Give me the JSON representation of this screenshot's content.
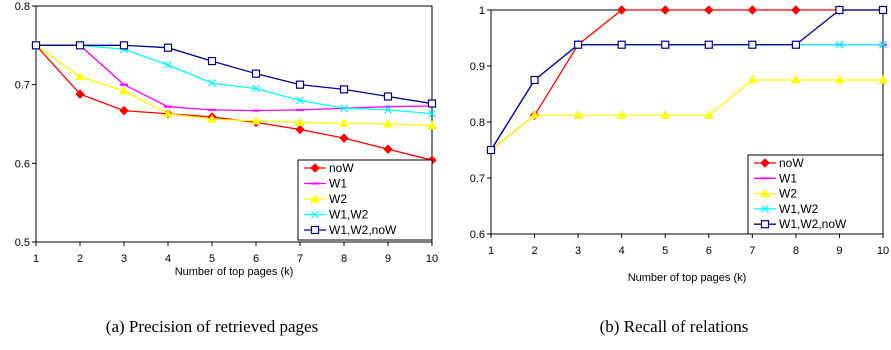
{
  "chart_data": [
    {
      "type": "line",
      "xlabel": "Number of top pages (k)",
      "ylabel": "",
      "caption": "(a) Precision of retrieved pages",
      "x": [
        1,
        2,
        3,
        4,
        5,
        6,
        7,
        8,
        9,
        10
      ],
      "xlim": [
        1,
        10
      ],
      "ylim": [
        0.5,
        0.8
      ],
      "yticks": [
        0.5,
        0.6,
        0.7,
        0.8
      ],
      "ytick_labels": [
        "0.5",
        "0.6",
        "0.7",
        "0.8"
      ],
      "grid": false,
      "legend_position": "bottom-right",
      "series": [
        {
          "name": "noW",
          "color": "#ff0000",
          "marker": "diamond",
          "values": [
            0.75,
            0.688,
            0.667,
            0.663,
            0.659,
            0.652,
            0.643,
            0.632,
            0.618,
            0.604
          ]
        },
        {
          "name": "W1",
          "color": "#ff00ff",
          "marker": "dash",
          "values": [
            0.75,
            0.75,
            0.7,
            0.672,
            0.668,
            0.667,
            0.668,
            0.67,
            0.672,
            0.673
          ]
        },
        {
          "name": "W2",
          "color": "#ffff00",
          "marker": "triangle",
          "values": [
            0.75,
            0.71,
            0.692,
            0.663,
            0.656,
            0.654,
            0.652,
            0.651,
            0.65,
            0.648
          ]
        },
        {
          "name": "W1,W2",
          "color": "#00ffff",
          "marker": "x",
          "values": [
            0.75,
            0.75,
            0.745,
            0.725,
            0.702,
            0.695,
            0.68,
            0.67,
            0.668,
            0.663
          ]
        },
        {
          "name": "W1,W2,noW",
          "color": "#00008b",
          "marker": "square",
          "values": [
            0.75,
            0.75,
            0.75,
            0.747,
            0.73,
            0.714,
            0.7,
            0.694,
            0.685,
            0.676
          ]
        }
      ]
    },
    {
      "type": "line",
      "xlabel": "Number of top pages (k)",
      "ylabel": "",
      "caption": "(b) Recall of relations",
      "x": [
        1,
        2,
        3,
        4,
        5,
        6,
        7,
        8,
        9,
        10
      ],
      "xlim": [
        1,
        10
      ],
      "ylim": [
        0.6,
        1.0
      ],
      "yticks": [
        0.6,
        0.7,
        0.8,
        0.9,
        1.0
      ],
      "ytick_labels": [
        "0.6",
        "0.7",
        "0.8",
        "0.9",
        "1"
      ],
      "grid": false,
      "legend_position": "bottom-right",
      "series": [
        {
          "name": "noW",
          "color": "#ff0000",
          "marker": "diamond",
          "values": [
            0.75,
            0.812,
            0.938,
            1.0,
            1.0,
            1.0,
            1.0,
            1.0,
            1.0,
            1.0
          ]
        },
        {
          "name": "W1",
          "color": "#ff00ff",
          "marker": "dash",
          "values": [
            0.75,
            0.875,
            0.938,
            0.938,
            0.938,
            0.938,
            0.938,
            0.938,
            0.938,
            0.938
          ]
        },
        {
          "name": "W2",
          "color": "#ffff00",
          "marker": "triangle",
          "values": [
            0.75,
            0.812,
            0.812,
            0.812,
            0.812,
            0.812,
            0.875,
            0.875,
            0.875,
            0.875
          ]
        },
        {
          "name": "W1,W2",
          "color": "#00ffff",
          "marker": "x",
          "values": [
            0.75,
            0.875,
            0.938,
            0.938,
            0.938,
            0.938,
            0.938,
            0.938,
            0.938,
            0.938
          ]
        },
        {
          "name": "W1,W2,noW",
          "color": "#00008b",
          "marker": "square",
          "values": [
            0.75,
            0.875,
            0.938,
            0.938,
            0.938,
            0.938,
            0.938,
            0.938,
            1.0,
            1.0
          ]
        }
      ]
    }
  ]
}
